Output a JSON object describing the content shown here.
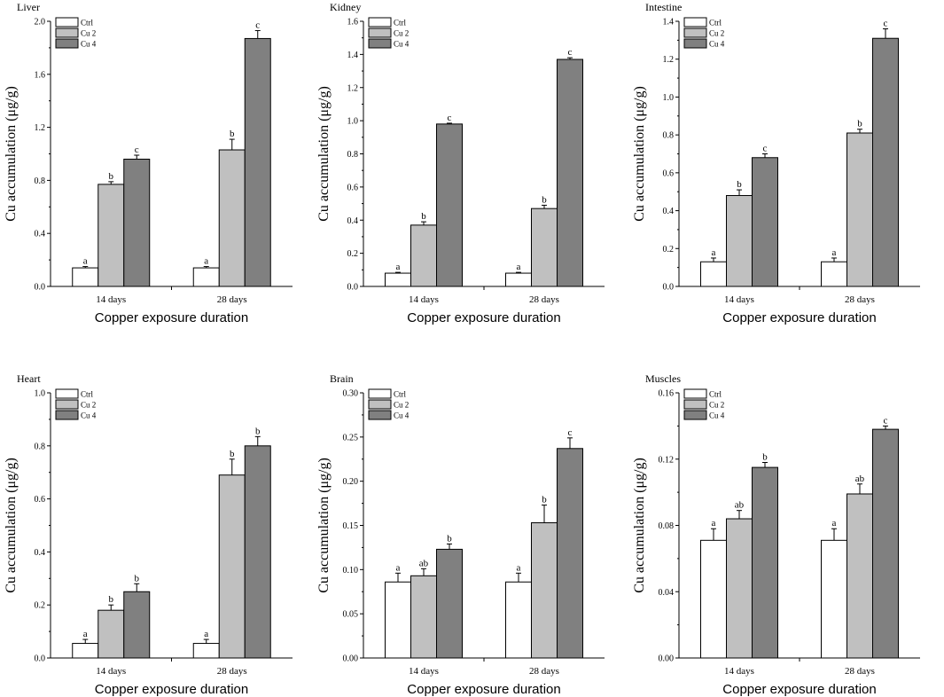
{
  "chart_data": [
    {
      "type": "bar",
      "title": "Liver",
      "xlabel": "Copper exposure duration",
      "ylabel": "Cu accumulation (μg/g)",
      "categories": [
        "14 days",
        "28 days"
      ],
      "ylim": [
        0,
        2.0
      ],
      "yticks": [
        "0.0",
        "0.4",
        "0.8",
        "1.2",
        "1.6",
        "2.0"
      ],
      "legend": "top-left",
      "series": [
        {
          "name": "Ctrl",
          "values": [
            0.14,
            0.14
          ],
          "errors": [
            0.01,
            0.01
          ],
          "letters": [
            "a",
            "a"
          ],
          "color": "#ffffff"
        },
        {
          "name": "Cu 2",
          "values": [
            0.77,
            1.03
          ],
          "errors": [
            0.02,
            0.08
          ],
          "letters": [
            "b",
            "b"
          ],
          "color": "#c0c0c0"
        },
        {
          "name": "Cu 4",
          "values": [
            0.96,
            1.87
          ],
          "errors": [
            0.03,
            0.06
          ],
          "letters": [
            "c",
            "c"
          ],
          "color": "#808080"
        }
      ]
    },
    {
      "type": "bar",
      "title": "Kidney",
      "xlabel": "Copper exposure duration",
      "ylabel": "Cu accumulation (μg/g)",
      "categories": [
        "14 days",
        "28 days"
      ],
      "ylim": [
        0,
        1.6
      ],
      "yticks": [
        "0.0",
        "0.2",
        "0.4",
        "0.6",
        "0.8",
        "1.0",
        "1.2",
        "1.4",
        "1.6"
      ],
      "legend": "top-left",
      "series": [
        {
          "name": "Ctrl",
          "values": [
            0.08,
            0.08
          ],
          "errors": [
            0.005,
            0.005
          ],
          "letters": [
            "a",
            "a"
          ],
          "color": "#ffffff"
        },
        {
          "name": "Cu 2",
          "values": [
            0.37,
            0.47
          ],
          "errors": [
            0.02,
            0.02
          ],
          "letters": [
            "b",
            "b"
          ],
          "color": "#c0c0c0"
        },
        {
          "name": "Cu 4",
          "values": [
            0.98,
            1.37
          ],
          "errors": [
            0.005,
            0.01
          ],
          "letters": [
            "c",
            "c"
          ],
          "color": "#808080"
        }
      ]
    },
    {
      "type": "bar",
      "title": "Intestine",
      "xlabel": "Copper exposure duration",
      "ylabel": "Cu accumulation (μg/g)",
      "categories": [
        "14 days",
        "28 days"
      ],
      "ylim": [
        0,
        1.4
      ],
      "yticks": [
        "0.0",
        "0.2",
        "0.4",
        "0.6",
        "0.8",
        "1.0",
        "1.2",
        "1.4"
      ],
      "legend": "top-left",
      "series": [
        {
          "name": "Ctrl",
          "values": [
            0.13,
            0.13
          ],
          "errors": [
            0.02,
            0.02
          ],
          "letters": [
            "a",
            "a"
          ],
          "color": "#ffffff"
        },
        {
          "name": "Cu 2",
          "values": [
            0.48,
            0.81
          ],
          "errors": [
            0.03,
            0.02
          ],
          "letters": [
            "b",
            "b"
          ],
          "color": "#c0c0c0"
        },
        {
          "name": "Cu 4",
          "values": [
            0.68,
            1.31
          ],
          "errors": [
            0.02,
            0.05
          ],
          "letters": [
            "c",
            "c"
          ],
          "color": "#808080"
        }
      ]
    },
    {
      "type": "bar",
      "title": "Heart",
      "xlabel": "Copper exposure duration",
      "ylabel": "Cu accumulation (μg/g)",
      "categories": [
        "14 days",
        "28 days"
      ],
      "ylim": [
        0,
        1.0
      ],
      "yticks": [
        "0.0",
        "0.2",
        "0.4",
        "0.6",
        "0.8",
        "1.0"
      ],
      "legend": "top-left",
      "series": [
        {
          "name": "Ctrl",
          "values": [
            0.055,
            0.055
          ],
          "errors": [
            0.015,
            0.015
          ],
          "letters": [
            "a",
            "a"
          ],
          "color": "#ffffff"
        },
        {
          "name": "Cu 2",
          "values": [
            0.18,
            0.69
          ],
          "errors": [
            0.02,
            0.06
          ],
          "letters": [
            "b",
            "b"
          ],
          "color": "#c0c0c0"
        },
        {
          "name": "Cu 4",
          "values": [
            0.25,
            0.8
          ],
          "errors": [
            0.03,
            0.035
          ],
          "letters": [
            "b",
            "b"
          ],
          "color": "#808080"
        }
      ]
    },
    {
      "type": "bar",
      "title": "Brain",
      "xlabel": "Copper exposure duration",
      "ylabel": "Cu accumulation (μg/g)",
      "categories": [
        "14 days",
        "28 days"
      ],
      "ylim": [
        0,
        0.3
      ],
      "yticks": [
        "0.00",
        "0.05",
        "0.10",
        "0.15",
        "0.20",
        "0.25",
        "0.30"
      ],
      "legend": "top-left",
      "series": [
        {
          "name": "Ctrl",
          "values": [
            0.086,
            0.086
          ],
          "errors": [
            0.01,
            0.01
          ],
          "letters": [
            "a",
            "a"
          ],
          "color": "#ffffff"
        },
        {
          "name": "Cu 2",
          "values": [
            0.093,
            0.153
          ],
          "errors": [
            0.008,
            0.02
          ],
          "letters": [
            "ab",
            "b"
          ],
          "color": "#c0c0c0"
        },
        {
          "name": "Cu 4",
          "values": [
            0.123,
            0.237
          ],
          "errors": [
            0.006,
            0.012
          ],
          "letters": [
            "b",
            "c"
          ],
          "color": "#808080"
        }
      ]
    },
    {
      "type": "bar",
      "title": "Muscles",
      "xlabel": "Copper exposure duration",
      "ylabel": "Cu accumulation (μg/g)",
      "categories": [
        "14 days",
        "28 days"
      ],
      "ylim": [
        0,
        0.16
      ],
      "yticks": [
        "0.00",
        "0.04",
        "0.08",
        "0.12",
        "0.16"
      ],
      "legend": "top-left",
      "series": [
        {
          "name": "Ctrl",
          "values": [
            0.071,
            0.071
          ],
          "errors": [
            0.007,
            0.007
          ],
          "letters": [
            "a",
            "a"
          ],
          "color": "#ffffff"
        },
        {
          "name": "Cu 2",
          "values": [
            0.084,
            0.099
          ],
          "errors": [
            0.005,
            0.006
          ],
          "letters": [
            "ab",
            "ab"
          ],
          "color": "#c0c0c0"
        },
        {
          "name": "Cu 4",
          "values": [
            0.115,
            0.138
          ],
          "errors": [
            0.003,
            0.002
          ],
          "letters": [
            "b",
            "c"
          ],
          "color": "#808080"
        }
      ]
    }
  ]
}
